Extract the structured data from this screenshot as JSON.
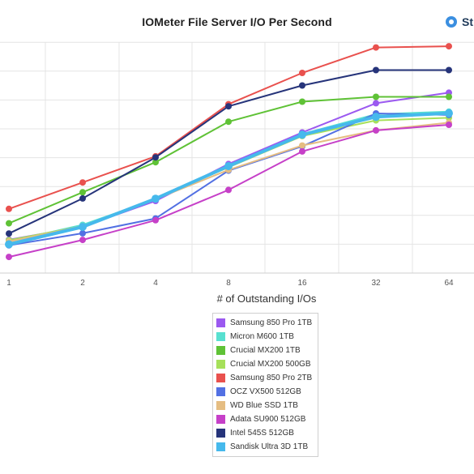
{
  "page": {
    "title": "IOMeter File Server I/O Per Second",
    "brand": "St"
  },
  "chart_data": {
    "type": "line",
    "title": "IOMeter File Server I/O Per Second",
    "xlabel": "# of Outstanding I/Os",
    "ylabel": "",
    "categories": [
      "1",
      "2",
      "4",
      "8",
      "16",
      "32",
      "64"
    ],
    "grid": true,
    "legend_position": "bottom",
    "series": [
      {
        "name": "Samsung 850 Pro 1TB",
        "color": "#9b59f0",
        "values": [
          300,
          810,
          1810,
          3250,
          4480,
          5620,
          6030
        ]
      },
      {
        "name": "Micron M600 1TB",
        "color": "#58e0d0",
        "values": [
          230,
          880,
          1880,
          3160,
          4420,
          5190,
          5290
        ]
      },
      {
        "name": "Crucial MX200 1TB",
        "color": "#5fc236",
        "values": [
          940,
          2150,
          3320,
          4900,
          5680,
          5870,
          5870
        ]
      },
      {
        "name": "Crucial MX200 500GB",
        "color": "#a6e05a",
        "values": [
          280,
          830,
          1910,
          3120,
          4340,
          4950,
          5050
        ]
      },
      {
        "name": "Samsung 850 Pro 2TB",
        "color": "#e9514e",
        "values": [
          1500,
          2530,
          3550,
          5580,
          6800,
          7790,
          7840
        ]
      },
      {
        "name": "OCZ VX500 512GB",
        "color": "#5270e3",
        "values": [
          80,
          550,
          1130,
          2990,
          3940,
          5220,
          5160
        ]
      },
      {
        "name": "WD Blue SSD 1TB",
        "color": "#e5bd82",
        "values": [
          230,
          830,
          1880,
          3020,
          3970,
          4560,
          4860
        ]
      },
      {
        "name": "Adata SU900 512GB",
        "color": "#c640c8",
        "values": [
          -370,
          290,
          1060,
          2240,
          3740,
          4560,
          4780
        ]
      },
      {
        "name": "Intel 545S 512GB",
        "color": "#26347a",
        "values": [
          540,
          1910,
          3510,
          5500,
          6310,
          6910,
          6910
        ]
      },
      {
        "name": "Sandisk Ultra 3D 1TB",
        "color": "#46b9ec",
        "values": [
          120,
          800,
          1900,
          3170,
          4390,
          5090,
          5230
        ]
      }
    ]
  }
}
